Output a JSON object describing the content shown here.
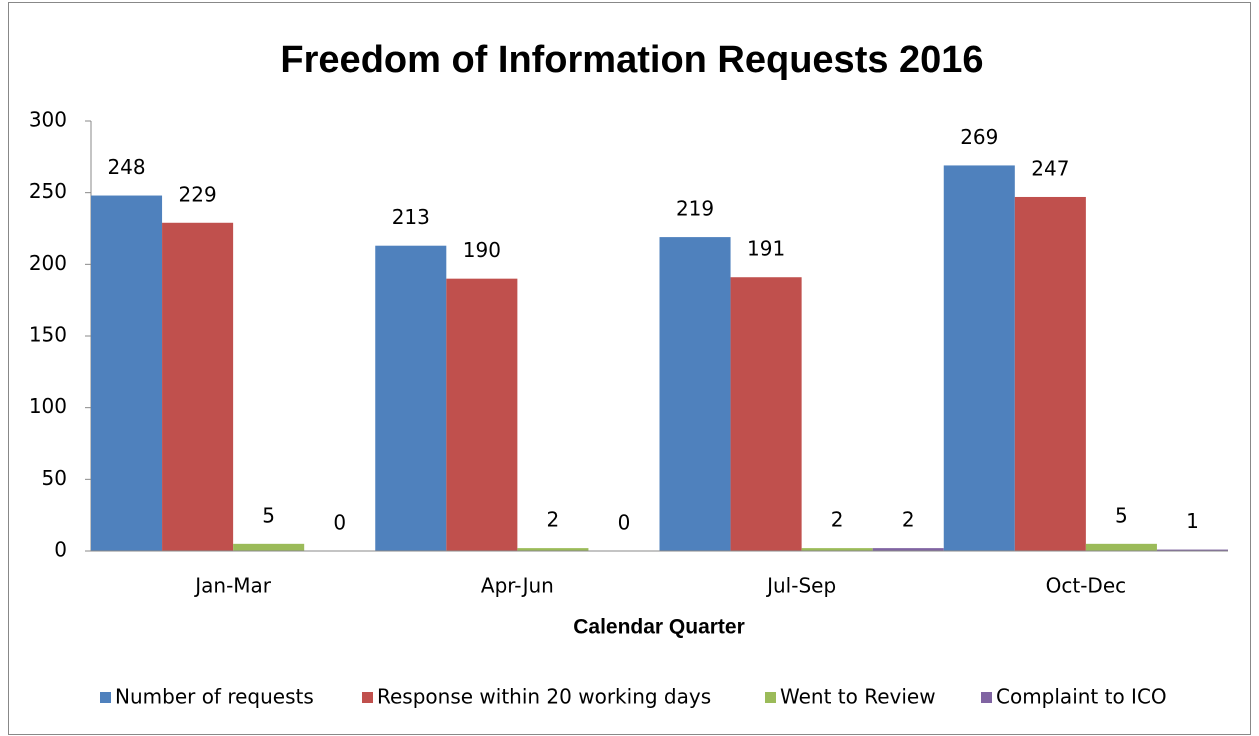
{
  "chart_data": {
    "type": "bar",
    "title": "Freedom of Information Requests 2016",
    "x_label": "Calendar Quarter",
    "categories": [
      "Jan-Mar",
      "Apr-Jun",
      "Jul-Sep",
      "Oct-Dec"
    ],
    "series": [
      {
        "name": "Number of requests",
        "color": "#4f81bd",
        "values": [
          248,
          213,
          219,
          269
        ]
      },
      {
        "name": "Response within 20 working days",
        "color": "#c0504d",
        "values": [
          229,
          190,
          191,
          247
        ]
      },
      {
        "name": "Went to Review",
        "color": "#9bbb59",
        "values": [
          5,
          2,
          2,
          5
        ]
      },
      {
        "name": "Complaint to ICO",
        "color": "#8064a2",
        "values": [
          0,
          0,
          2,
          1
        ]
      }
    ],
    "ylim": [
      0,
      300
    ],
    "yticks": [
      0,
      50,
      100,
      150,
      200,
      250,
      300
    ],
    "grid": false,
    "legend": "bottom",
    "data_labels": true
  }
}
